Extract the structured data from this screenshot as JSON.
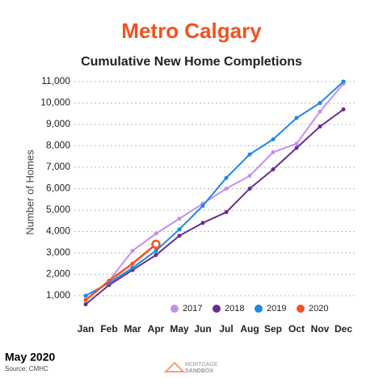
{
  "chart_data": {
    "type": "line",
    "title": "Metro Calgary",
    "subtitle": "Cumulative New Home Completions",
    "y_label": "Number of Homes",
    "categories": [
      "Jan",
      "Feb",
      "Mar",
      "Apr",
      "May",
      "Jun",
      "Jul",
      "Aug",
      "Sep",
      "Oct",
      "Nov",
      "Dec"
    ],
    "series": [
      {
        "name": "2017",
        "color": "#c490ee",
        "values": [
          800,
          1700,
          3100,
          3900,
          4600,
          5300,
          6000,
          6600,
          7700,
          8100,
          9600,
          10900
        ]
      },
      {
        "name": "2018",
        "color": "#6a2c91",
        "values": [
          600,
          1500,
          2200,
          2900,
          3800,
          4400,
          4900,
          6000,
          6900,
          7900,
          8900,
          9700
        ]
      },
      {
        "name": "2019",
        "color": "#1e88e5",
        "values": [
          1000,
          1600,
          2300,
          3100,
          4100,
          5200,
          6500,
          7600,
          8300,
          9300,
          10000,
          11000
        ]
      },
      {
        "name": "2020",
        "color": "#f4511e",
        "values": [
          800,
          1700,
          2500,
          3400,
          null,
          null,
          null,
          null,
          null,
          null,
          null,
          null
        ]
      }
    ],
    "ylim": [
      0,
      11300
    ],
    "yticks": [
      {
        "value": 1000,
        "label": "1,000"
      },
      {
        "value": 2000,
        "label": "2,000"
      },
      {
        "value": 3000,
        "label": "3,000"
      },
      {
        "value": 4000,
        "label": "4,000"
      },
      {
        "value": 5000,
        "label": "5,000"
      },
      {
        "value": 6000,
        "label": "6,000"
      },
      {
        "value": 7000,
        "label": "7,000"
      },
      {
        "value": 8000,
        "label": "8,000"
      },
      {
        "value": 9000,
        "label": "9,000"
      },
      {
        "value": 10000,
        "label": "10,000"
      },
      {
        "value": 11000,
        "label": "11,000"
      }
    ],
    "grid": true,
    "legend": "bottom-right"
  },
  "footer": {
    "date": "May 2020",
    "source": "Source: CMHC",
    "logo_top": "MORTGAGE",
    "logo_bottom": "SANDBOX"
  }
}
